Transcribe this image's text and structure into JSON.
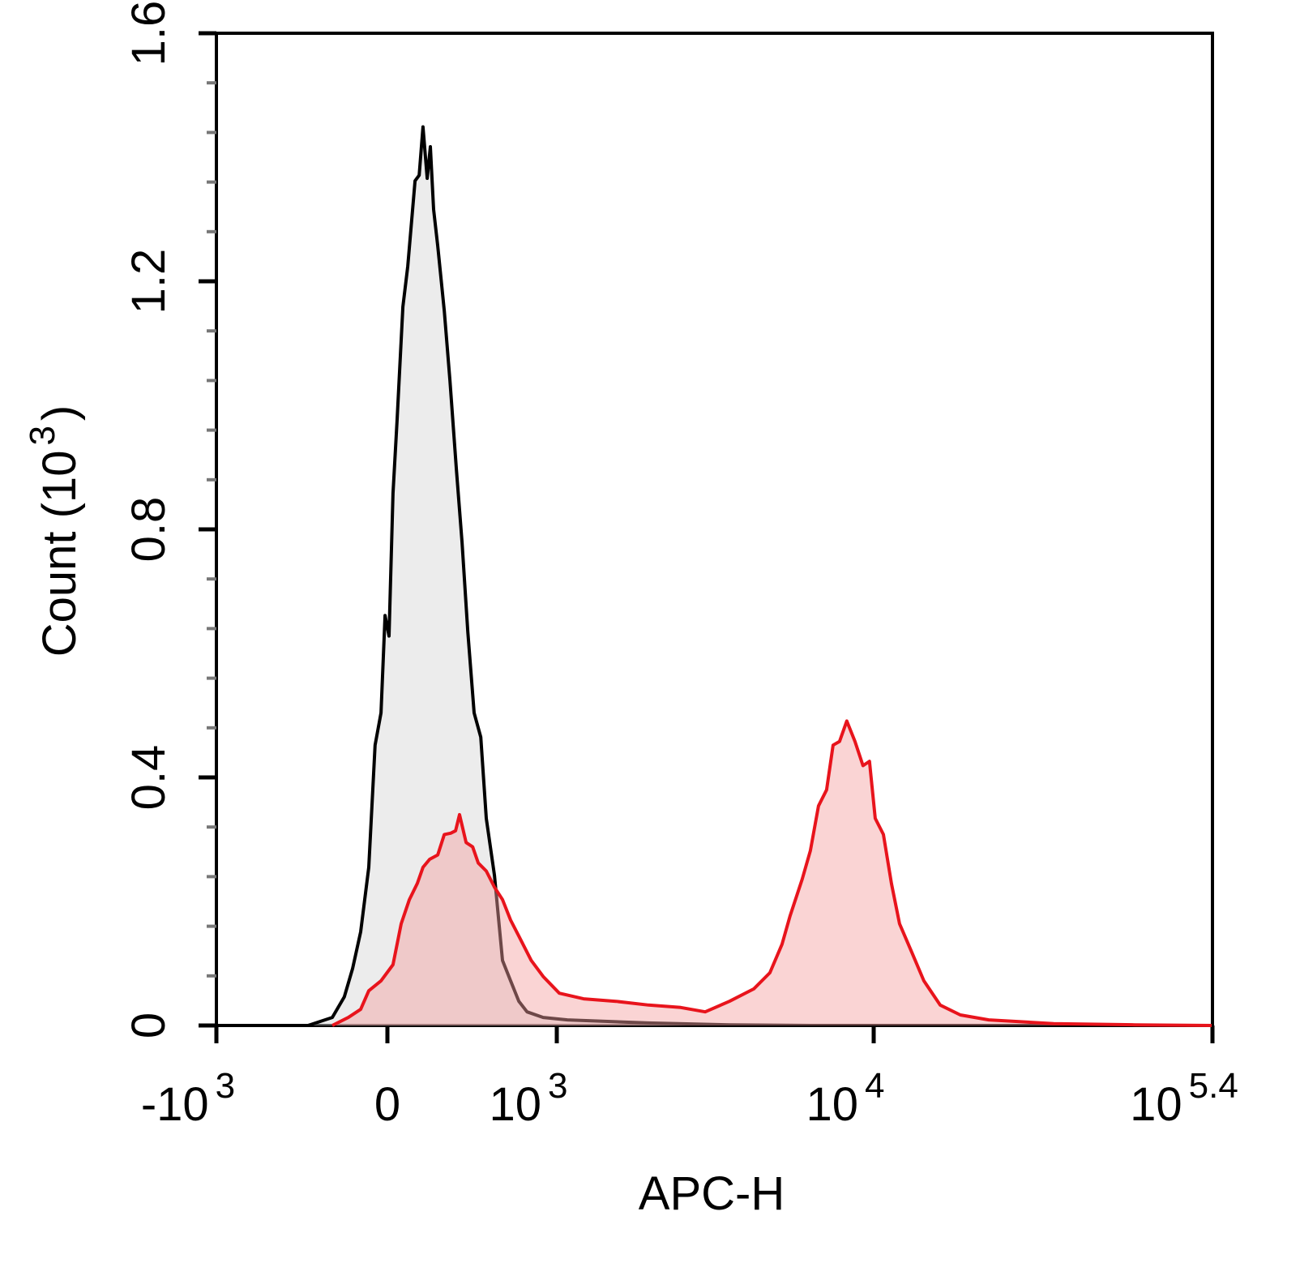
{
  "chart_data": {
    "type": "histogram-overlay",
    "xlabel": "APC-H",
    "ylabel": [
      "Count  (10",
      "3",
      ")"
    ],
    "xscale": "biexponential",
    "xlim": [
      -1000,
      251189
    ],
    "xticks": [
      {
        "value": -1000,
        "label": "-10",
        "exponent": "3"
      },
      0,
      {
        "value": 1000,
        "label": "10",
        "exponent": "3"
      },
      {
        "value": 10000,
        "label": "10",
        "exponent": "4"
      },
      {
        "value": 251189,
        "label": "10",
        "exponent": "5.4"
      }
    ],
    "ylim": [
      0,
      1.6
    ],
    "yticks": [
      0,
      0.4,
      0.8,
      1.2,
      1.6
    ],
    "yminorticks": [
      0.08,
      0.16,
      0.24,
      0.32,
      0.48,
      0.56,
      0.64,
      0.72,
      0.88,
      0.96,
      1.04,
      1.12,
      1.28,
      1.36,
      1.44,
      1.52
    ],
    "series": [
      {
        "color": "#000000",
        "fill": "#d4d4d4",
        "x": [
          -361,
          -241,
          -186,
          -149,
          -114,
          -79,
          -52,
          -27,
          -10,
          7,
          24,
          41,
          66,
          87,
          119,
          137,
          154,
          173,
          187,
          202,
          221,
          252,
          279,
          311,
          340,
          370,
          404,
          441,
          473,
          522,
          573,
          627,
          685,
          746,
          877,
          1087,
          1997,
          3583,
          6380
        ],
        "values": [
          0,
          0.013,
          0.046,
          0.092,
          0.151,
          0.255,
          0.452,
          0.504,
          0.661,
          0.628,
          0.858,
          0.975,
          1.159,
          1.224,
          1.362,
          1.371,
          1.449,
          1.366,
          1.417,
          1.316,
          1.257,
          1.152,
          1.041,
          0.897,
          0.779,
          0.635,
          0.504,
          0.465,
          0.334,
          0.242,
          0.105,
          0.072,
          0.039,
          0.022,
          0.013,
          0.009,
          0.004,
          0.001,
          0
        ]
      },
      {
        "color": "#e8141c",
        "fill": "#f4a0a0",
        "x": [
          -241,
          -168,
          -114,
          -79,
          -27,
          24,
          59,
          94,
          129,
          154,
          184,
          221,
          252,
          283,
          307,
          327,
          361,
          396,
          427,
          473,
          522,
          573,
          627,
          685,
          778,
          877,
          1020,
          1231,
          1572,
          1997,
          2524,
          3010,
          3583,
          4262,
          4782,
          5213,
          5522,
          6019,
          6380,
          6756,
          7158,
          7496,
          7850,
          8263,
          8755,
          9268,
          9708,
          10145,
          10970,
          11845,
          12795,
          14370,
          16125,
          18820,
          22820,
          29900,
          55400,
          119750,
          249170
        ],
        "values": [
          0,
          0.013,
          0.026,
          0.056,
          0.072,
          0.098,
          0.164,
          0.203,
          0.229,
          0.255,
          0.268,
          0.275,
          0.308,
          0.31,
          0.314,
          0.34,
          0.295,
          0.288,
          0.262,
          0.249,
          0.223,
          0.203,
          0.17,
          0.144,
          0.105,
          0.079,
          0.052,
          0.043,
          0.039,
          0.033,
          0.029,
          0.022,
          0.039,
          0.059,
          0.085,
          0.131,
          0.177,
          0.236,
          0.282,
          0.354,
          0.38,
          0.452,
          0.458,
          0.491,
          0.458,
          0.419,
          0.426,
          0.334,
          0.308,
          0.229,
          0.164,
          0.118,
          0.072,
          0.033,
          0.017,
          0.009,
          0.003,
          0.001,
          0
        ]
      }
    ]
  }
}
